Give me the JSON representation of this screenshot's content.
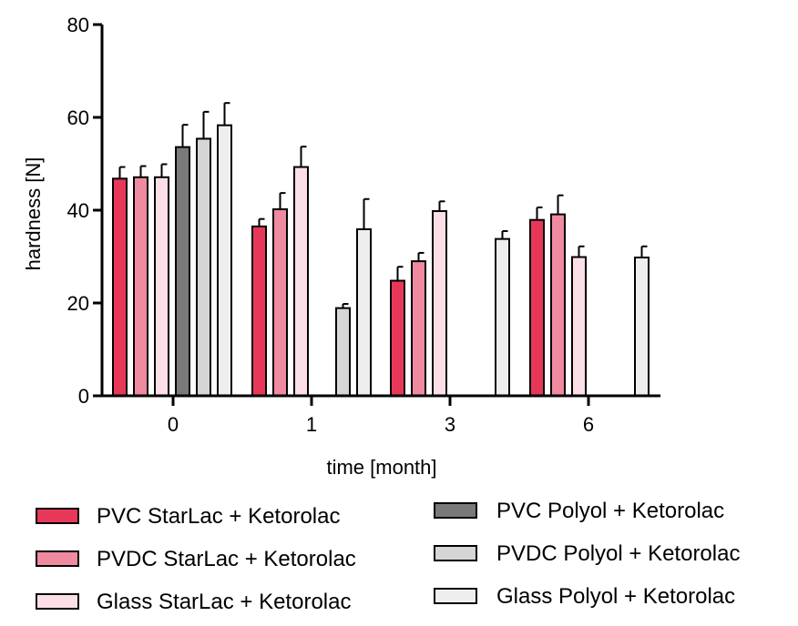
{
  "chart_data": {
    "type": "bar",
    "categories": [
      "0",
      "1",
      "3",
      "6"
    ],
    "xlabel": "time [month]",
    "ylabel": "hardness [N]",
    "ylim": [
      0,
      80
    ],
    "yticks": [
      0,
      20,
      40,
      60,
      80
    ],
    "grid": false,
    "legend_position": "bottom",
    "series": [
      {
        "name": "PVC StarLac + Ketorolac",
        "color": "#e8385a",
        "values": [
          46.8,
          36.5,
          24.8,
          37.9
        ],
        "errors": [
          2.5,
          1.6,
          3.0,
          2.7
        ]
      },
      {
        "name": "PVDC StarLac + Ketorolac",
        "color": "#f08aa0",
        "values": [
          47.1,
          40.2,
          29.0,
          39.1
        ],
        "errors": [
          2.4,
          3.5,
          1.8,
          4.1
        ]
      },
      {
        "name": "Glass StarLac + Ketorolac",
        "color": "#fcdfe6",
        "values": [
          47.1,
          49.3,
          39.8,
          29.9
        ],
        "errors": [
          2.8,
          4.4,
          2.1,
          2.3
        ]
      },
      {
        "name": "PVC Polyol + Ketorolac",
        "color": "#7a7a7a",
        "values": [
          53.6,
          null,
          null,
          null
        ],
        "errors": [
          4.8,
          null,
          null,
          null
        ]
      },
      {
        "name": "PVDC Polyol + Ketorolac",
        "color": "#d6d6d6",
        "values": [
          55.4,
          18.9,
          null,
          null
        ],
        "errors": [
          5.8,
          0.9,
          null,
          null
        ]
      },
      {
        "name": "Glass Polyol + Ketorolac",
        "color": "#eeeeee",
        "values": [
          58.3,
          35.9,
          33.8,
          29.8
        ],
        "errors": [
          4.8,
          6.5,
          1.7,
          2.4
        ]
      }
    ]
  }
}
